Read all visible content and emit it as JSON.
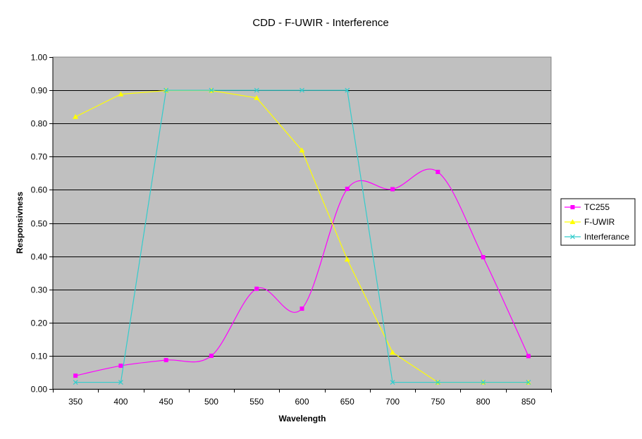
{
  "chart_data": {
    "type": "line",
    "title": "CDD - F-UWIR - Interference",
    "xlabel": "Wavelength",
    "ylabel": "Responsivness",
    "categories": [
      "350",
      "400",
      "450",
      "500",
      "550",
      "600",
      "650",
      "700",
      "750",
      "800",
      "850"
    ],
    "ylim": [
      0,
      1
    ],
    "yticks": [
      "0.00",
      "0.10",
      "0.20",
      "0.30",
      "0.40",
      "0.50",
      "0.60",
      "0.70",
      "0.80",
      "0.90",
      "1.00"
    ],
    "grid": true,
    "legend_position": "right",
    "plot_background": "#c0c0c0",
    "series": [
      {
        "name": "TC255",
        "color": "#ff00ff",
        "marker": "square",
        "smooth": true,
        "values": [
          0.04,
          0.07,
          0.087,
          0.1,
          0.302,
          0.242,
          0.603,
          0.602,
          0.654,
          0.397,
          0.099
        ]
      },
      {
        "name": "F-UWIR",
        "color": "#ffff00",
        "marker": "triangle",
        "smooth": false,
        "values": [
          0.82,
          0.888,
          0.899,
          0.899,
          0.877,
          0.719,
          0.39,
          0.11,
          0.02,
          0.02,
          0.02
        ]
      },
      {
        "name": "Interferance",
        "color": "#33cccc",
        "marker": "x",
        "smooth": false,
        "values": [
          0.02,
          0.02,
          0.9,
          0.9,
          0.9,
          0.9,
          0.9,
          0.02,
          0.02,
          0.02,
          0.02
        ]
      }
    ]
  }
}
